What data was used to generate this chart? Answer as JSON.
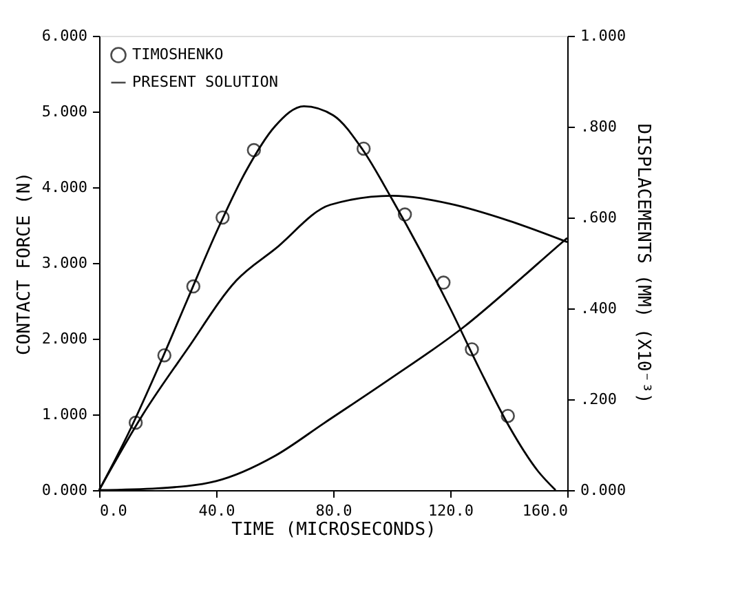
{
  "chart_data": {
    "type": "line",
    "xlabel": "TIME (MICROSECONDS)",
    "ylabel": "CONTACT FORCE (N)",
    "y2label": "DISPLACEMENTS (MM) (X10⁻³)",
    "xlim": [
      0,
      160
    ],
    "xticks": [
      {
        "value": 0,
        "label": "0.0"
      },
      {
        "value": 40,
        "label": "40.0"
      },
      {
        "value": 80,
        "label": "80.0"
      },
      {
        "value": 120,
        "label": "120.0"
      },
      {
        "value": 160,
        "label": "160.0"
      }
    ],
    "ylim": [
      0,
      6
    ],
    "yticks": [
      {
        "value": 0,
        "label": "0.000"
      },
      {
        "value": 1,
        "label": "1.000"
      },
      {
        "value": 2,
        "label": "2.000"
      },
      {
        "value": 3,
        "label": "3.000"
      },
      {
        "value": 4,
        "label": "4.000"
      },
      {
        "value": 5,
        "label": "5.000"
      },
      {
        "value": 6,
        "label": "6.000"
      }
    ],
    "y2lim": [
      0,
      1
    ],
    "y2ticks": [
      {
        "value": 0,
        "label": "0.000"
      },
      {
        "value": 0.2,
        "label": ".200"
      },
      {
        "value": 0.4,
        "label": ".400"
      },
      {
        "value": 0.6,
        "label": ".600"
      },
      {
        "value": 0.8,
        "label": ".800"
      },
      {
        "value": 1,
        "label": "1.000"
      }
    ],
    "legend": "top left",
    "grid": false,
    "line_style": "solid",
    "series": [
      {
        "name": "TIMOSHENKO",
        "type": "scatter",
        "marker": "circle",
        "color": "#000000",
        "x": [
          12.5,
          22.3,
          32.2,
          42.2,
          52.9,
          90.4,
          104.5,
          117.7,
          127.4,
          139.7
        ],
        "values": [
          0.89,
          1.78,
          2.69,
          3.6,
          4.49,
          4.51,
          3.64,
          2.74,
          1.86,
          0.98
        ]
      },
      {
        "name": "PRESENT SOLUTION",
        "color": "#000000",
        "x": [
          0,
          10,
          20,
          30,
          40,
          50,
          60,
          70,
          80,
          90,
          100,
          110,
          120,
          130,
          140,
          150,
          156
        ],
        "values": [
          0,
          0.75,
          1.6,
          2.5,
          3.4,
          4.2,
          4.8,
          5.07,
          4.95,
          4.5,
          3.85,
          3.15,
          2.4,
          1.6,
          0.85,
          0.25,
          0
        ]
      },
      {
        "axis": "y2",
        "color": "#000000",
        "x": [
          0,
          15,
          30,
          47,
          60,
          79,
          100,
          120,
          140,
          160
        ],
        "values": [
          0,
          0.167,
          0.309,
          0.462,
          0.53,
          0.628,
          0.648,
          0.63,
          0.593,
          0.546
        ]
      },
      {
        "axis": "y2",
        "color": "#000000",
        "x": [
          0,
          20,
          40,
          60,
          77,
          99,
          125,
          142.6,
          158,
          160
        ],
        "values": [
          0,
          0.004,
          0.02,
          0.075,
          0.148,
          0.243,
          0.361,
          0.457,
          0.544,
          0.555
        ]
      }
    ]
  }
}
